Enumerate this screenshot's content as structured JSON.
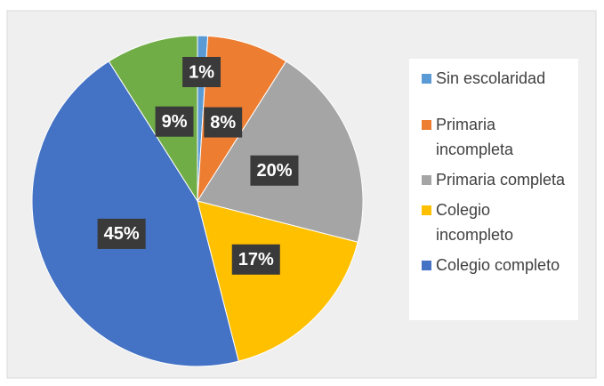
{
  "chart_data": {
    "type": "pie",
    "categories": [
      "Sin escolaridad",
      "Primaria incompleta",
      "Primaria completa",
      "Colegio incompleto",
      "Colegio completo",
      null
    ],
    "values": [
      1,
      8,
      20,
      17,
      45,
      9
    ],
    "value_labels": [
      "1%",
      "8%",
      "20%",
      "17%",
      "45%",
      "9%"
    ],
    "colors": [
      "#5b9bd5",
      "#ed7d31",
      "#a5a5a5",
      "#ffc000",
      "#4472c4",
      "#70ad47"
    ],
    "legend": "right"
  }
}
